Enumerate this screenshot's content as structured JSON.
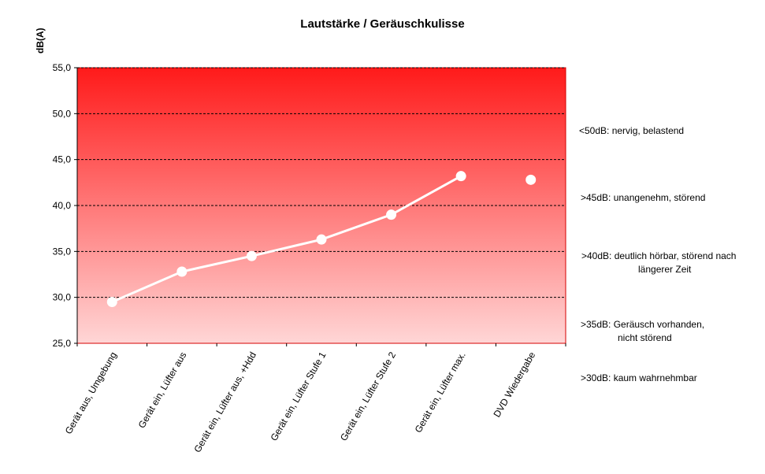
{
  "chart_data": {
    "type": "line",
    "title": "Lautstärke / Geräuschkulisse",
    "ylabel": "dB(A)",
    "xlabel": "",
    "ylim": [
      25,
      55
    ],
    "yticks": [
      "25,0",
      "30,0",
      "35,0",
      "40,0",
      "45,0",
      "50,0",
      "55,0"
    ],
    "grid": "horizontal dashed",
    "categories": [
      "Gerät aus, Umgebung",
      "Gerät ein, Lüfter aus",
      "Gerät ein, Lüfter aus, +Hdd",
      "Gerät ein, Lüfter Stufe 1",
      "Gerät ein, Lüfter Stufe 2",
      "Gerät ein, Lüfter max.",
      "DVD Wiedergabe"
    ],
    "series": [
      {
        "values": [
          29.5,
          32.8,
          34.5,
          36.3,
          39.0,
          43.2,
          42.8
        ],
        "connected_points": 6,
        "color": "#ffffff"
      }
    ],
    "background_gradient": [
      "#ff1a1a",
      "#ffd6d6"
    ]
  },
  "annotations": [
    {
      "line1": "<50dB: nervig, belastend",
      "line2": ""
    },
    {
      "line1": ">45dB: unangenehm, störend",
      "line2": ""
    },
    {
      "line1": ">40dB: deutlich hörbar, störend nach",
      "line2": "längerer Zeit"
    },
    {
      "line1": ">35dB: Geräusch vorhanden,",
      "line2": "nicht störend"
    },
    {
      "line1": ">30dB: kaum wahrnehmbar",
      "line2": ""
    }
  ]
}
